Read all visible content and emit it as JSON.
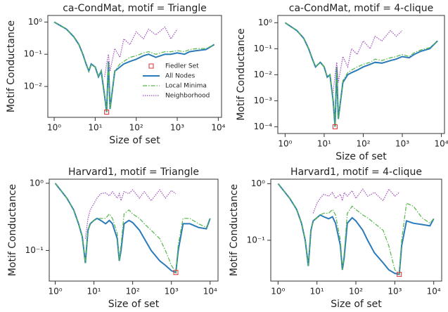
{
  "chart_data": [
    {
      "type": "line",
      "title": "ca-CondMat, motif = Triangle",
      "xlabel": "Size of set",
      "ylabel": "Motif Conductance",
      "xscale": "log",
      "yscale": "log",
      "legend": true,
      "legend_position": "center right",
      "xlim": [
        0.7,
        12000
      ],
      "ylim": [
        0.0011,
        1.6
      ],
      "xticks": [
        {
          "value": 1,
          "label": "10⁰"
        },
        {
          "value": 10,
          "label": "10¹"
        },
        {
          "value": 100,
          "label": "10²"
        },
        {
          "value": 1000,
          "label": "10³"
        },
        {
          "value": 10000,
          "label": "10⁴"
        }
      ],
      "yticks": [
        {
          "value": 0.01,
          "label": "10⁻²"
        },
        {
          "value": 0.1,
          "label": "10⁻¹"
        },
        {
          "value": 1,
          "label": "10⁰"
        }
      ],
      "x": [
        1,
        2,
        3,
        4,
        5,
        6,
        7,
        8,
        10,
        12,
        14,
        17,
        19,
        21,
        23,
        30,
        40,
        50,
        70,
        100,
        150,
        200,
        300,
        500,
        700,
        1000,
        1500,
        2000,
        3000,
        5000,
        8000
      ],
      "series": [
        {
          "name": "All Nodes",
          "color": "#2b7bba",
          "style": "solid",
          "values": [
            1.0,
            0.6,
            0.35,
            0.2,
            0.1,
            0.05,
            0.03,
            0.05,
            0.04,
            0.02,
            0.03,
            0.005,
            0.0016,
            0.06,
            0.002,
            0.03,
            0.04,
            0.05,
            0.06,
            0.07,
            0.09,
            0.1,
            0.08,
            0.1,
            0.1,
            0.11,
            0.1,
            0.12,
            0.13,
            0.14,
            0.2
          ]
        },
        {
          "name": "Local Minima",
          "color": "#55b748",
          "style": "dashdot",
          "values": [
            1.0,
            0.6,
            0.35,
            0.2,
            0.1,
            0.05,
            0.03,
            0.05,
            0.04,
            0.02,
            0.03,
            0.005,
            0.0016,
            0.06,
            0.002,
            0.03,
            0.05,
            0.06,
            0.08,
            0.09,
            0.11,
            0.12,
            0.1,
            0.12,
            0.12,
            0.13,
            0.12,
            0.14,
            0.15,
            0.15,
            0.2
          ]
        },
        {
          "name": "Neighborhood",
          "color": "#a04cc0",
          "style": "dotted",
          "values": [
            null,
            null,
            null,
            null,
            null,
            null,
            null,
            null,
            null,
            null,
            null,
            0.02,
            0.05,
            0.1,
            0.03,
            0.15,
            0.08,
            0.3,
            0.2,
            0.5,
            0.3,
            0.6,
            0.4,
            0.7,
            0.3,
            0.6,
            null,
            null,
            null,
            null,
            null
          ]
        }
      ],
      "fiedler_set": {
        "name": "Fiedler Set",
        "color": "#e03030",
        "x": 19,
        "y": 0.0016
      }
    },
    {
      "type": "line",
      "title": "ca-CondMat, motif = 4-clique",
      "xlabel": "Size of set",
      "ylabel": "Motif Conductance",
      "xscale": "log",
      "yscale": "log",
      "legend": false,
      "xlim": [
        0.65,
        12000
      ],
      "ylim": [
        5.5e-05,
        1.9
      ],
      "xticks": [
        {
          "value": 1,
          "label": "10⁰"
        },
        {
          "value": 10,
          "label": "10¹"
        },
        {
          "value": 100,
          "label": "10²"
        },
        {
          "value": 1000,
          "label": "10³"
        },
        {
          "value": 10000,
          "label": "10⁴"
        }
      ],
      "yticks": [
        {
          "value": 0.0001,
          "label": "10⁻⁴"
        },
        {
          "value": 0.001,
          "label": "10⁻³"
        },
        {
          "value": 0.01,
          "label": "10⁻²"
        },
        {
          "value": 0.1,
          "label": "10⁻¹"
        },
        {
          "value": 1,
          "label": "10⁰"
        }
      ],
      "x": [
        1,
        2,
        3,
        4,
        5,
        6,
        7,
        8,
        10,
        12,
        14,
        17,
        19,
        21,
        23,
        30,
        40,
        50,
        70,
        100,
        150,
        200,
        300,
        500,
        700,
        1000,
        1500,
        2000,
        3000,
        5000,
        8000
      ],
      "series": [
        {
          "name": "All Nodes",
          "color": "#2b7bba",
          "style": "solid",
          "values": [
            1.0,
            0.5,
            0.25,
            0.1,
            0.04,
            0.02,
            0.025,
            0.03,
            0.02,
            0.008,
            0.01,
            0.001,
            0.0001,
            0.02,
            0.0002,
            0.005,
            0.01,
            0.012,
            0.015,
            0.02,
            0.025,
            0.03,
            0.028,
            0.035,
            0.04,
            0.05,
            0.045,
            0.06,
            0.08,
            0.1,
            0.2
          ]
        },
        {
          "name": "Local Minima",
          "color": "#55b748",
          "style": "dashdot",
          "values": [
            1.0,
            0.5,
            0.25,
            0.1,
            0.04,
            0.02,
            0.025,
            0.03,
            0.02,
            0.008,
            0.01,
            0.001,
            0.0001,
            0.02,
            0.0002,
            0.006,
            0.012,
            0.015,
            0.02,
            0.025,
            0.03,
            0.04,
            0.035,
            0.045,
            0.05,
            0.06,
            0.05,
            0.07,
            0.09,
            0.11,
            0.2
          ]
        },
        {
          "name": "Neighborhood",
          "color": "#a04cc0",
          "style": "dotted",
          "values": [
            null,
            null,
            null,
            null,
            null,
            null,
            null,
            null,
            null,
            null,
            null,
            0.002,
            0.01,
            0.03,
            0.005,
            0.05,
            0.02,
            0.1,
            0.06,
            0.2,
            0.1,
            0.3,
            0.2,
            0.5,
            0.3,
            0.5,
            null,
            null,
            null,
            null,
            null
          ]
        }
      ],
      "fiedler_set": {
        "name": "Fiedler Set",
        "color": "#e03030",
        "x": 19,
        "y": 0.0001
      }
    },
    {
      "type": "line",
      "title": "Harvard1, motif = Triangle",
      "xlabel": "Size of set",
      "ylabel": "Motif Conductance",
      "xscale": "log",
      "yscale": "log",
      "legend": false,
      "xlim": [
        0.7,
        16000
      ],
      "ylim": [
        0.035,
        1.15
      ],
      "xticks": [
        {
          "value": 1,
          "label": "10⁰"
        },
        {
          "value": 10,
          "label": "10¹"
        },
        {
          "value": 100,
          "label": "10²"
        },
        {
          "value": 1000,
          "label": "10³"
        },
        {
          "value": 10000,
          "label": "10⁴"
        }
      ],
      "yticks": [
        {
          "value": 0.1,
          "label": "10⁻¹"
        },
        {
          "value": 1,
          "label": "10⁰"
        }
      ],
      "x": [
        1,
        2,
        3,
        4,
        5,
        6,
        7,
        8,
        10,
        12,
        15,
        20,
        25,
        30,
        40,
        45,
        50,
        60,
        80,
        100,
        150,
        200,
        300,
        500,
        700,
        1000,
        1300,
        1500,
        2000,
        3000,
        5000,
        8000,
        10000
      ],
      "series": [
        {
          "name": "All Nodes",
          "color": "#2b7bba",
          "style": "solid",
          "values": [
            1.0,
            0.6,
            0.4,
            0.25,
            0.16,
            0.065,
            0.2,
            0.25,
            0.28,
            0.3,
            0.28,
            0.25,
            0.28,
            0.25,
            0.15,
            0.07,
            0.1,
            0.25,
            0.28,
            0.26,
            0.2,
            0.15,
            0.1,
            0.07,
            0.06,
            0.05,
            0.047,
            0.1,
            0.25,
            0.25,
            0.22,
            0.21,
            0.3
          ]
        },
        {
          "name": "Local Minima",
          "color": "#55b748",
          "style": "dashdot",
          "values": [
            1.0,
            0.6,
            0.4,
            0.25,
            0.16,
            0.065,
            0.2,
            0.25,
            0.28,
            0.3,
            0.3,
            0.3,
            0.35,
            0.3,
            0.18,
            0.07,
            0.12,
            0.35,
            0.4,
            0.35,
            0.3,
            0.25,
            0.2,
            0.15,
            0.1,
            0.06,
            0.047,
            0.12,
            0.3,
            0.3,
            0.25,
            0.22,
            0.3
          ]
        },
        {
          "name": "Neighborhood",
          "color": "#a04cc0",
          "style": "dotted",
          "values": [
            null,
            null,
            null,
            null,
            null,
            0.15,
            0.3,
            0.4,
            0.5,
            0.6,
            0.7,
            0.72,
            0.65,
            0.75,
            0.6,
            0.7,
            0.55,
            0.75,
            0.7,
            0.8,
            0.6,
            0.75,
            0.55,
            0.8,
            0.6,
            0.78,
            0.7,
            null,
            null,
            null,
            null,
            null,
            null
          ]
        }
      ],
      "fiedler_set": {
        "name": "Fiedler Set",
        "color": "#e03030",
        "x": 1300,
        "y": 0.047
      }
    },
    {
      "type": "line",
      "title": "Harvard1, motif = 4-clique",
      "xlabel": "Size of set",
      "ylabel": "Motif Conductance",
      "xscale": "log",
      "yscale": "log",
      "legend": false,
      "xlim": [
        0.65,
        16000
      ],
      "ylim": [
        0.019,
        1.2
      ],
      "xticks": [
        {
          "value": 1,
          "label": "10⁰"
        },
        {
          "value": 10,
          "label": "10¹"
        },
        {
          "value": 100,
          "label": "10²"
        },
        {
          "value": 1000,
          "label": "10³"
        },
        {
          "value": 10000,
          "label": "10⁴"
        }
      ],
      "yticks": [
        {
          "value": 0.1,
          "label": "10⁻¹"
        },
        {
          "value": 1,
          "label": "10⁰"
        }
      ],
      "x": [
        1,
        2,
        3,
        4,
        5,
        6,
        7,
        8,
        10,
        12,
        15,
        20,
        25,
        30,
        40,
        45,
        50,
        60,
        80,
        100,
        150,
        200,
        300,
        500,
        700,
        1000,
        1300,
        1500,
        2000,
        3000,
        5000,
        8000,
        10000
      ],
      "series": [
        {
          "name": "All Nodes",
          "color": "#2b7bba",
          "style": "solid",
          "values": [
            1.0,
            0.55,
            0.35,
            0.2,
            0.1,
            0.035,
            0.15,
            0.22,
            0.25,
            0.28,
            0.26,
            0.24,
            0.26,
            0.2,
            0.08,
            0.03,
            0.05,
            0.2,
            0.25,
            0.22,
            0.15,
            0.1,
            0.06,
            0.04,
            0.03,
            0.026,
            0.025,
            0.08,
            0.22,
            0.2,
            0.19,
            0.18,
            0.24
          ]
        },
        {
          "name": "Local Minima",
          "color": "#55b748",
          "style": "dashdot",
          "values": [
            1.0,
            0.55,
            0.35,
            0.2,
            0.1,
            0.035,
            0.15,
            0.22,
            0.25,
            0.28,
            0.3,
            0.3,
            0.35,
            0.28,
            0.1,
            0.03,
            0.06,
            0.3,
            0.4,
            0.35,
            0.28,
            0.25,
            0.2,
            0.15,
            0.08,
            0.03,
            0.025,
            0.1,
            0.45,
            0.4,
            0.25,
            0.2,
            0.24
          ]
        },
        {
          "name": "Neighborhood",
          "color": "#a04cc0",
          "style": "dotted",
          "values": [
            null,
            null,
            null,
            null,
            null,
            null,
            null,
            0.3,
            0.45,
            0.55,
            0.65,
            0.6,
            0.7,
            0.55,
            0.65,
            0.5,
            0.7,
            0.6,
            0.75,
            0.55,
            0.8,
            0.6,
            0.7,
            0.5,
            0.8,
            0.6,
            0.7,
            null,
            null,
            null,
            null,
            null,
            null
          ]
        }
      ],
      "fiedler_set": {
        "name": "Fiedler Set",
        "color": "#e03030",
        "x": 1300,
        "y": 0.025
      }
    }
  ]
}
